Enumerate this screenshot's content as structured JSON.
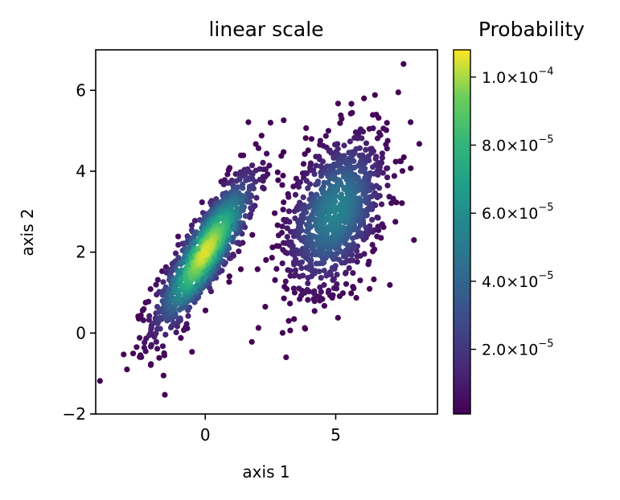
{
  "chart_data": {
    "type": "scatter",
    "title": "linear scale",
    "xlabel": "axis 1",
    "ylabel": "axis 2",
    "xlim": [
      -4.2,
      8.9
    ],
    "ylim": [
      -2,
      7
    ],
    "x_ticks": [
      0,
      5
    ],
    "y_ticks": [
      -2,
      0,
      2,
      4,
      6
    ],
    "x_tick_labels": [
      "0",
      "5"
    ],
    "y_tick_labels": [
      "−2",
      "0",
      "2",
      "4",
      "6"
    ],
    "colormap": "viridis",
    "colorbar": {
      "title": "Probability",
      "range": [
        1e-06,
        0.000108
      ],
      "ticks": [
        2e-05,
        4e-05,
        6e-05,
        8e-05,
        0.0001
      ],
      "tick_labels": [
        {
          "mantissa": "2.0",
          "exp": "−5"
        },
        {
          "mantissa": "4.0",
          "exp": "−5"
        },
        {
          "mantissa": "6.0",
          "exp": "−5"
        },
        {
          "mantissa": "8.0",
          "exp": "−5"
        },
        {
          "mantissa": "1.0",
          "exp": "−4"
        }
      ]
    },
    "clusters": [
      {
        "center": [
          0.0,
          2.0
        ],
        "sd": [
          1.0,
          1.0
        ],
        "correlation": 0.85,
        "count": 1000,
        "peak_probability": 0.000105
      },
      {
        "center": [
          5.0,
          3.0
        ],
        "sd": [
          1.0,
          1.0
        ],
        "correlation": 0.4,
        "count": 1000,
        "peak_probability": 5.5e-05
      }
    ],
    "outliers": [
      {
        "x": -3.0,
        "y": -0.9
      },
      {
        "x": -1.6,
        "y": -1.05
      },
      {
        "x": 3.1,
        "y": -0.6
      },
      {
        "x": 7.6,
        "y": 6.65
      },
      {
        "x": 7.4,
        "y": 5.95
      },
      {
        "x": 2.5,
        "y": 5.2
      },
      {
        "x": 8.0,
        "y": 2.3
      },
      {
        "x": 2.3,
        "y": 0.65
      },
      {
        "x": 3.2,
        "y": 0.3
      }
    ]
  }
}
